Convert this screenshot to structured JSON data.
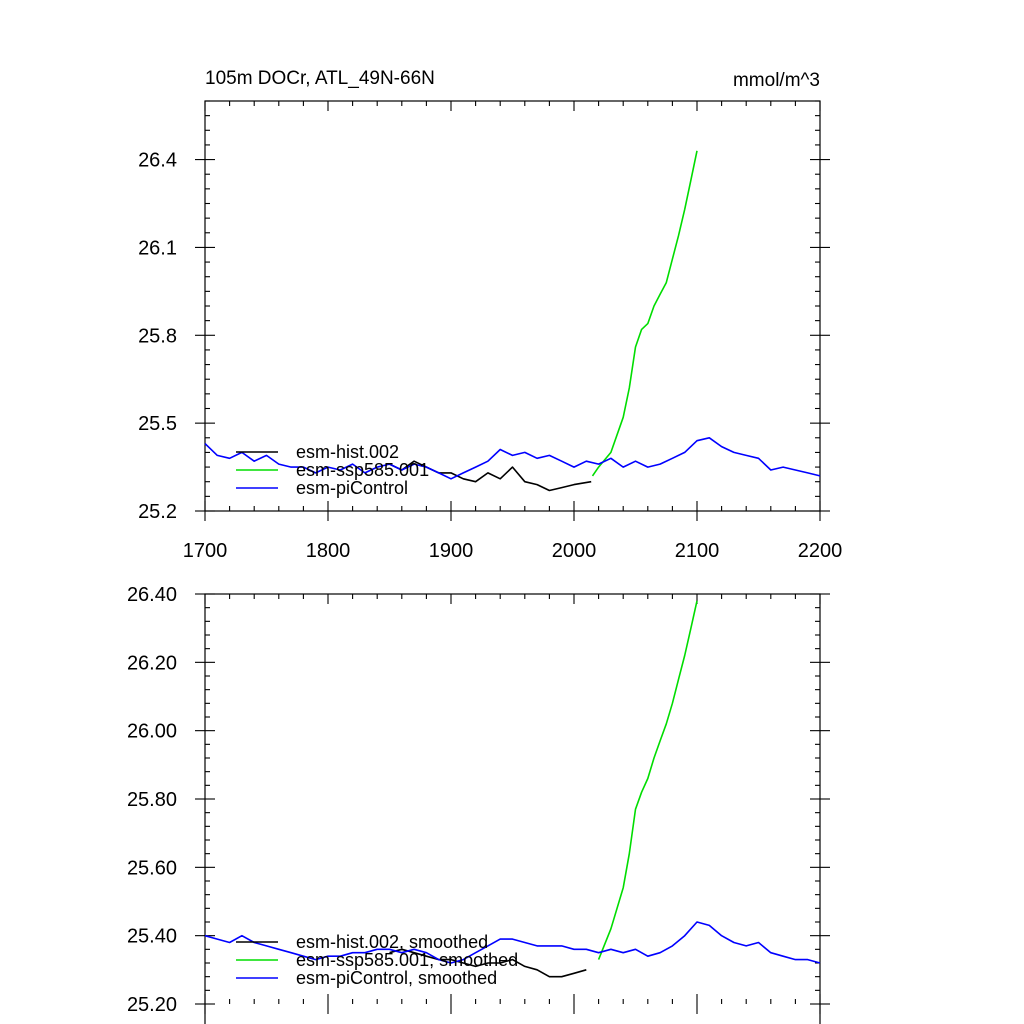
{
  "chart_data": [
    {
      "type": "line",
      "title": "105m DOCr, ATL_49N-66N",
      "units": "mmol/m^3",
      "xlim": [
        1700,
        2200
      ],
      "ylim": [
        25.2,
        26.6
      ],
      "x_ticks": [
        "1700",
        "1800",
        "1900",
        "2000",
        "2100",
        "2200"
      ],
      "y_ticks": [
        "25.2",
        "25.5",
        "25.8",
        "26.1",
        "26.4"
      ],
      "legend_position": "lower-left",
      "series": [
        {
          "name": "esm-hist.002",
          "color": "#000000",
          "x": [
            1850,
            1860,
            1870,
            1880,
            1890,
            1900,
            1910,
            1920,
            1930,
            1940,
            1950,
            1960,
            1970,
            1980,
            1990,
            2000,
            2014
          ],
          "y": [
            25.36,
            25.34,
            25.37,
            25.35,
            25.33,
            25.33,
            25.31,
            25.3,
            25.33,
            25.31,
            25.35,
            25.3,
            25.29,
            25.27,
            25.28,
            25.29,
            25.3
          ]
        },
        {
          "name": "esm-ssp585.001",
          "color": "#00dd00",
          "x": [
            2015,
            2020,
            2030,
            2040,
            2045,
            2050,
            2055,
            2060,
            2065,
            2070,
            2075,
            2080,
            2085,
            2090,
            2095,
            2100
          ],
          "y": [
            25.32,
            25.35,
            25.4,
            25.52,
            25.62,
            25.76,
            25.82,
            25.84,
            25.9,
            25.94,
            25.98,
            26.06,
            26.14,
            26.23,
            26.33,
            26.43
          ]
        },
        {
          "name": "esm-piControl",
          "color": "#0000ff",
          "x": [
            1700,
            1710,
            1720,
            1730,
            1740,
            1750,
            1760,
            1770,
            1780,
            1790,
            1800,
            1810,
            1820,
            1830,
            1840,
            1850,
            1860,
            1870,
            1880,
            1890,
            1900,
            1910,
            1920,
            1930,
            1940,
            1950,
            1960,
            1970,
            1980,
            1990,
            2000,
            2010,
            2020,
            2030,
            2040,
            2050,
            2060,
            2070,
            2080,
            2090,
            2100,
            2110,
            2120,
            2130,
            2140,
            2150,
            2160,
            2170,
            2180,
            2190,
            2200
          ],
          "y": [
            25.43,
            25.39,
            25.38,
            25.4,
            25.37,
            25.39,
            25.36,
            25.35,
            25.35,
            25.33,
            25.35,
            25.34,
            25.36,
            25.33,
            25.35,
            25.36,
            25.34,
            25.36,
            25.35,
            25.33,
            25.31,
            25.33,
            25.35,
            25.37,
            25.41,
            25.39,
            25.4,
            25.38,
            25.39,
            25.37,
            25.35,
            25.37,
            25.36,
            25.38,
            25.35,
            25.37,
            25.35,
            25.36,
            25.38,
            25.4,
            25.44,
            25.45,
            25.42,
            25.4,
            25.39,
            25.38,
            25.34,
            25.35,
            25.34,
            25.33,
            25.32
          ]
        }
      ]
    },
    {
      "type": "line",
      "xlim": [
        1700,
        2200
      ],
      "ylim": [
        25.2,
        26.4
      ],
      "y_ticks": [
        "25.20",
        "25.40",
        "25.60",
        "25.80",
        "26.00",
        "26.20",
        "26.40"
      ],
      "legend_position": "lower-left",
      "series": [
        {
          "name": "esm-hist.002, smoothed",
          "color": "#000000",
          "x": [
            1850,
            1860,
            1870,
            1880,
            1890,
            1900,
            1910,
            1920,
            1930,
            1940,
            1950,
            1960,
            1970,
            1980,
            1990,
            2000,
            2010
          ],
          "y": [
            25.35,
            25.36,
            25.35,
            25.34,
            25.33,
            25.33,
            25.32,
            25.31,
            25.32,
            25.32,
            25.33,
            25.31,
            25.3,
            25.28,
            25.28,
            25.29,
            25.3
          ]
        },
        {
          "name": "esm-ssp585.001, smoothed",
          "color": "#00dd00",
          "x": [
            2020,
            2030,
            2040,
            2045,
            2050,
            2055,
            2060,
            2065,
            2070,
            2075,
            2080,
            2085,
            2090,
            2095,
            2100
          ],
          "y": [
            25.33,
            25.42,
            25.54,
            25.64,
            25.77,
            25.82,
            25.86,
            25.92,
            25.97,
            26.02,
            26.08,
            26.15,
            26.22,
            26.3,
            26.38
          ]
        },
        {
          "name": "esm-piControl, smoothed",
          "color": "#0000ff",
          "x": [
            1700,
            1710,
            1720,
            1730,
            1740,
            1750,
            1760,
            1770,
            1780,
            1790,
            1800,
            1810,
            1820,
            1830,
            1840,
            1850,
            1860,
            1870,
            1880,
            1890,
            1900,
            1910,
            1920,
            1930,
            1940,
            1950,
            1960,
            1970,
            1980,
            1990,
            2000,
            2010,
            2020,
            2030,
            2040,
            2050,
            2060,
            2070,
            2080,
            2090,
            2100,
            2110,
            2120,
            2130,
            2140,
            2150,
            2160,
            2170,
            2180,
            2190,
            2200
          ],
          "y": [
            25.4,
            25.39,
            25.38,
            25.4,
            25.38,
            25.37,
            25.36,
            25.35,
            25.34,
            25.33,
            25.34,
            25.34,
            25.35,
            25.35,
            25.36,
            25.36,
            25.35,
            25.36,
            25.35,
            25.33,
            25.32,
            25.33,
            25.35,
            25.37,
            25.39,
            25.39,
            25.38,
            25.37,
            25.37,
            25.37,
            25.36,
            25.36,
            25.35,
            25.36,
            25.35,
            25.36,
            25.34,
            25.35,
            25.37,
            25.4,
            25.44,
            25.43,
            25.4,
            25.38,
            25.37,
            25.38,
            25.35,
            25.34,
            25.33,
            25.33,
            25.32
          ]
        }
      ]
    }
  ]
}
